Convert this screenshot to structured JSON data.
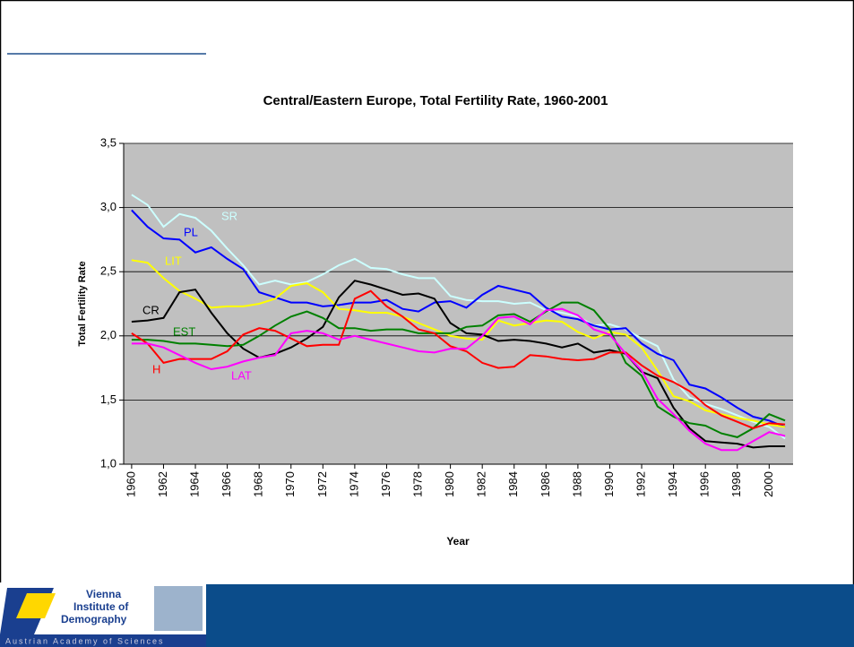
{
  "footer": {
    "logo": [
      "Vienna",
      "Institute of",
      "Demography"
    ],
    "logo_sub": "Austrian Academy of Sciences"
  },
  "chart_data": {
    "type": "line",
    "title": "Central/Eastern Europe, Total Fertility Rate, 1960-2001",
    "x_label": "Year",
    "y_label": "Total Fertility Rate",
    "x": [
      1960,
      1961,
      1962,
      1963,
      1964,
      1965,
      1966,
      1967,
      1968,
      1969,
      1970,
      1971,
      1972,
      1973,
      1974,
      1975,
      1976,
      1977,
      1978,
      1979,
      1980,
      1981,
      1982,
      1983,
      1984,
      1985,
      1986,
      1987,
      1988,
      1989,
      1990,
      1991,
      1992,
      1993,
      1994,
      1995,
      1996,
      1997,
      1998,
      1999,
      2000,
      2001
    ],
    "xlim": [
      1959.5,
      2001.5
    ],
    "xticks": [
      1960,
      1962,
      1964,
      1966,
      1968,
      1970,
      1972,
      1974,
      1976,
      1978,
      1980,
      1982,
      1984,
      1986,
      1988,
      1990,
      1992,
      1994,
      1996,
      1998,
      2000
    ],
    "ylim": [
      1.0,
      3.5
    ],
    "yticks": [
      {
        "value": 1.0,
        "label": "1,0"
      },
      {
        "value": 1.5,
        "label": "1,5"
      },
      {
        "value": 2.0,
        "label": "2,0"
      },
      {
        "value": 2.5,
        "label": "2,5"
      },
      {
        "value": 3.0,
        "label": "3,0"
      },
      {
        "value": 3.5,
        "label": "3,5"
      }
    ],
    "grid": true,
    "series": [
      {
        "name": "SR",
        "color": "#ccffff",
        "values": [
          3.1,
          3.02,
          2.85,
          2.95,
          2.92,
          2.82,
          2.68,
          2.55,
          2.4,
          2.43,
          2.4,
          2.42,
          2.48,
          2.55,
          2.6,
          2.53,
          2.52,
          2.48,
          2.45,
          2.45,
          2.31,
          2.28,
          2.27,
          2.27,
          2.25,
          2.26,
          2.2,
          2.18,
          2.15,
          2.08,
          2.09,
          2.05,
          1.98,
          1.92,
          1.66,
          1.52,
          1.47,
          1.43,
          1.38,
          1.33,
          1.29,
          1.2
        ]
      },
      {
        "name": "PL",
        "color": "#0000ff",
        "values": [
          2.98,
          2.85,
          2.76,
          2.75,
          2.65,
          2.69,
          2.6,
          2.52,
          2.34,
          2.3,
          2.26,
          2.26,
          2.23,
          2.24,
          2.26,
          2.26,
          2.28,
          2.21,
          2.19,
          2.26,
          2.27,
          2.22,
          2.32,
          2.39,
          2.36,
          2.33,
          2.22,
          2.15,
          2.13,
          2.08,
          2.05,
          2.06,
          1.94,
          1.86,
          1.81,
          1.62,
          1.59,
          1.52,
          1.44,
          1.37,
          1.34,
          1.29
        ]
      },
      {
        "name": "LIT",
        "color": "#ffff00",
        "values": [
          2.59,
          2.57,
          2.45,
          2.35,
          2.29,
          2.22,
          2.23,
          2.23,
          2.25,
          2.29,
          2.39,
          2.41,
          2.34,
          2.21,
          2.2,
          2.18,
          2.18,
          2.15,
          2.1,
          2.05,
          2.0,
          1.98,
          1.97,
          2.12,
          2.08,
          2.1,
          2.12,
          2.11,
          2.03,
          1.98,
          2.03,
          2.01,
          1.91,
          1.73,
          1.53,
          1.49,
          1.42,
          1.39,
          1.36,
          1.34,
          1.31,
          1.29
        ]
      },
      {
        "name": "CR",
        "color": "#000000",
        "values": [
          2.11,
          2.12,
          2.14,
          2.34,
          2.36,
          2.18,
          2.02,
          1.9,
          1.83,
          1.86,
          1.91,
          1.98,
          2.07,
          2.3,
          2.43,
          2.4,
          2.36,
          2.32,
          2.33,
          2.29,
          2.1,
          2.02,
          2.01,
          1.96,
          1.97,
          1.96,
          1.94,
          1.91,
          1.94,
          1.87,
          1.89,
          1.86,
          1.72,
          1.67,
          1.44,
          1.28,
          1.18,
          1.17,
          1.16,
          1.13,
          1.14,
          1.14
        ]
      },
      {
        "name": "EST",
        "color": "#008000",
        "values": [
          1.97,
          1.97,
          1.96,
          1.94,
          1.94,
          1.93,
          1.92,
          1.93,
          2.0,
          2.08,
          2.15,
          2.19,
          2.14,
          2.06,
          2.06,
          2.04,
          2.05,
          2.05,
          2.02,
          2.02,
          2.02,
          2.07,
          2.08,
          2.16,
          2.17,
          2.11,
          2.19,
          2.26,
          2.26,
          2.2,
          2.05,
          1.79,
          1.69,
          1.45,
          1.37,
          1.32,
          1.3,
          1.24,
          1.21,
          1.28,
          1.39,
          1.34
        ]
      },
      {
        "name": "H",
        "color": "#ff0000",
        "values": [
          2.02,
          1.94,
          1.79,
          1.82,
          1.82,
          1.82,
          1.88,
          2.01,
          2.06,
          2.04,
          1.98,
          1.92,
          1.93,
          1.93,
          2.29,
          2.35,
          2.23,
          2.15,
          2.05,
          2.02,
          1.92,
          1.88,
          1.79,
          1.75,
          1.76,
          1.85,
          1.84,
          1.82,
          1.81,
          1.82,
          1.87,
          1.87,
          1.77,
          1.69,
          1.64,
          1.57,
          1.46,
          1.38,
          1.33,
          1.28,
          1.32,
          1.31
        ]
      },
      {
        "name": "LAT",
        "color": "#ff00ff",
        "values": [
          1.94,
          1.94,
          1.91,
          1.85,
          1.79,
          1.74,
          1.76,
          1.8,
          1.83,
          1.85,
          2.02,
          2.04,
          2.02,
          1.97,
          2.0,
          1.97,
          1.94,
          1.91,
          1.88,
          1.87,
          1.9,
          1.9,
          2.0,
          2.14,
          2.15,
          2.09,
          2.2,
          2.21,
          2.16,
          2.05,
          2.01,
          1.86,
          1.73,
          1.51,
          1.39,
          1.26,
          1.16,
          1.11,
          1.11,
          1.18,
          1.25,
          1.22
        ]
      }
    ]
  }
}
